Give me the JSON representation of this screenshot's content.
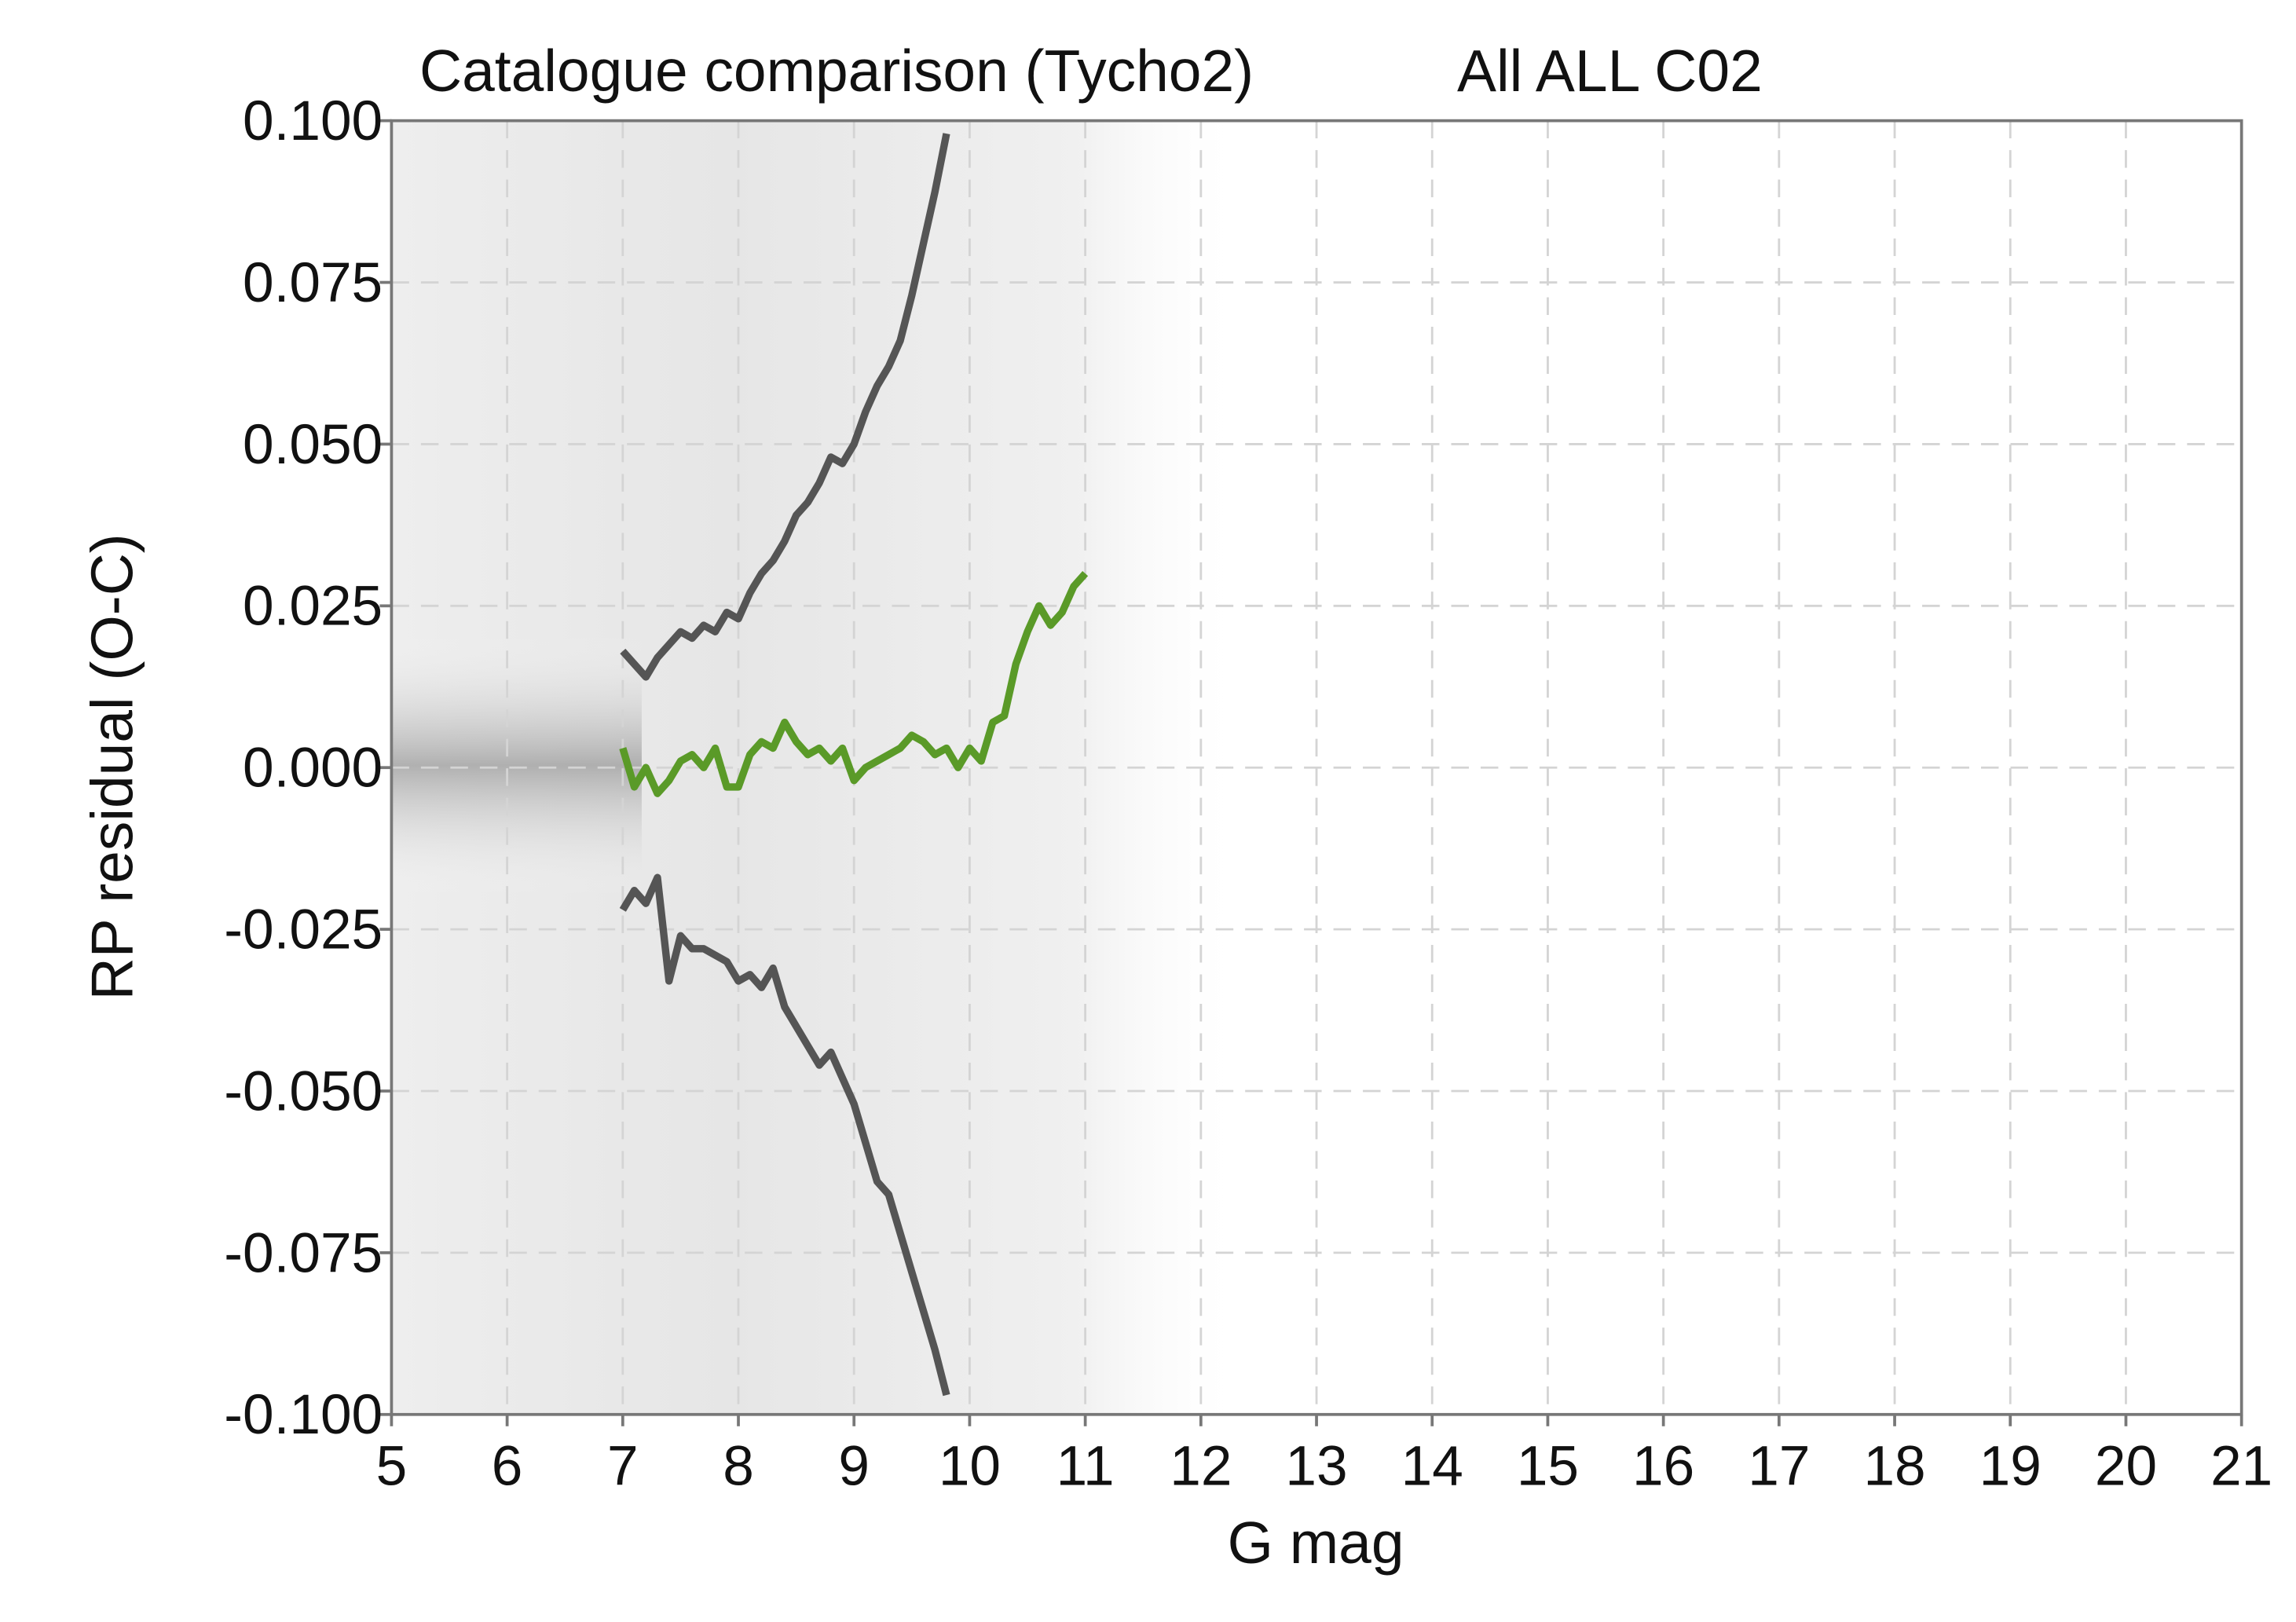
{
  "chart_data": {
    "type": "line",
    "title": "Catalogue comparison (Tycho2)",
    "subtitle": "All ALL C02",
    "x_label": "G mag",
    "y_label": "RP residual (O-C)",
    "xlim": [
      5,
      21
    ],
    "xticks": [
      5,
      6,
      7,
      8,
      9,
      10,
      11,
      12,
      13,
      14,
      15,
      16,
      17,
      18,
      19,
      20,
      21
    ],
    "ylim": [
      -0.1,
      0.1
    ],
    "yticks": [
      {
        "value": -0.1,
        "label": "-0.100"
      },
      {
        "value": -0.075,
        "label": "-0.075"
      },
      {
        "value": -0.05,
        "label": "-0.050"
      },
      {
        "value": -0.025,
        "label": "-0.025"
      },
      {
        "value": 0,
        "label": "0.000"
      },
      {
        "value": 0.025,
        "label": "0.025"
      },
      {
        "value": 0.05,
        "label": "0.050"
      },
      {
        "value": 0.075,
        "label": "0.075"
      },
      {
        "value": 0.1,
        "label": "0.100"
      }
    ],
    "grid": true,
    "x": [
      7.0,
      7.1,
      7.2,
      7.3,
      7.4,
      7.5,
      7.6,
      7.7,
      7.8,
      7.9,
      8.0,
      8.1,
      8.2,
      8.3,
      8.4,
      8.5,
      8.6,
      8.7,
      8.8,
      8.9,
      9.0,
      9.1,
      9.2,
      9.3,
      9.4,
      9.5,
      9.6,
      9.7,
      9.8,
      9.9,
      10.0,
      10.1,
      10.2,
      10.3,
      10.4,
      10.5,
      10.6,
      10.7,
      10.8,
      10.9,
      11.0
    ],
    "series": [
      {
        "color": "#555555",
        "values": [
          0.018,
          0.016,
          0.014,
          0.017,
          0.019,
          0.021,
          0.02,
          0.022,
          0.021,
          0.024,
          0.023,
          0.027,
          0.03,
          0.032,
          0.035,
          0.039,
          0.041,
          0.044,
          0.048,
          0.047,
          0.05,
          0.055,
          0.059,
          0.062,
          0.066,
          0.073,
          0.081,
          0.089,
          0.098,
          null,
          null,
          null,
          null,
          null,
          null,
          null,
          null,
          null,
          null,
          null,
          null
        ]
      },
      {
        "color": "#5a9a28",
        "values": [
          0.003,
          -0.003,
          0.0,
          -0.004,
          -0.002,
          0.001,
          0.002,
          0.0,
          0.003,
          -0.003,
          -0.003,
          0.002,
          0.004,
          0.003,
          0.007,
          0.004,
          0.002,
          0.003,
          0.001,
          0.003,
          -0.002,
          0.0,
          0.001,
          0.002,
          0.003,
          0.005,
          0.004,
          0.002,
          0.003,
          0.0,
          0.003,
          0.001,
          0.007,
          0.008,
          0.016,
          0.021,
          0.025,
          0.022,
          0.024,
          0.028,
          0.03
        ]
      },
      {
        "color": "#555555",
        "values": [
          -0.022,
          -0.019,
          -0.021,
          -0.017,
          -0.033,
          -0.026,
          -0.028,
          -0.028,
          -0.029,
          -0.03,
          -0.033,
          -0.032,
          -0.034,
          -0.031,
          -0.037,
          -0.04,
          -0.043,
          -0.046,
          -0.044,
          -0.048,
          -0.052,
          -0.058,
          -0.064,
          -0.066,
          -0.072,
          -0.078,
          -0.084,
          -0.09,
          -0.097,
          null,
          null,
          null,
          null,
          null,
          null,
          null,
          null,
          null,
          null,
          null,
          null
        ]
      }
    ]
  }
}
